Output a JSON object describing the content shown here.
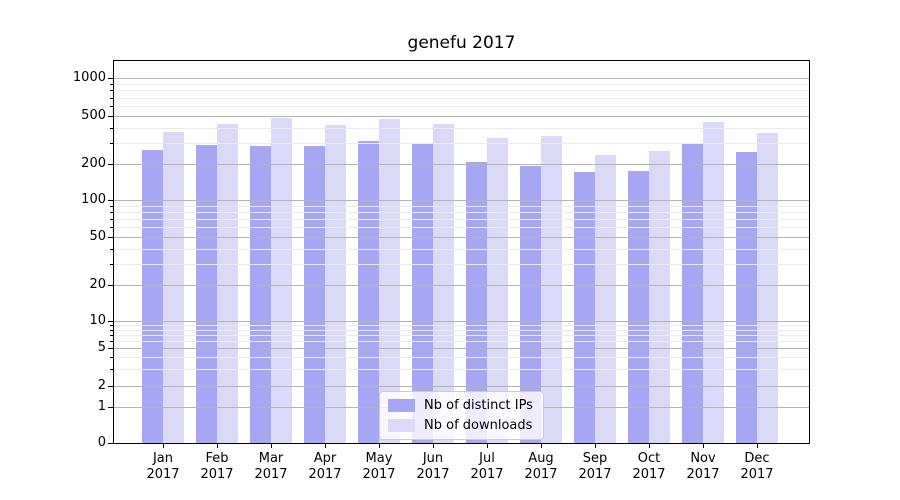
{
  "title": "genefu 2017",
  "chart_data": {
    "type": "bar",
    "title": "genefu 2017",
    "categories": [
      "Jan",
      "Feb",
      "Mar",
      "Apr",
      "May",
      "Jun",
      "Jul",
      "Aug",
      "Sep",
      "Oct",
      "Nov",
      "Dec"
    ],
    "category_year": "2017",
    "series": [
      {
        "name": "Nb of distinct IPs",
        "color": "#a6a6f4",
        "values": [
          261,
          287,
          283,
          283,
          310,
          293,
          208,
          192,
          172,
          175,
          299,
          252
        ]
      },
      {
        "name": "Nb of downloads",
        "color": "#dadaf8",
        "values": [
          368,
          429,
          481,
          421,
          472,
          428,
          329,
          341,
          237,
          256,
          446,
          362
        ]
      }
    ],
    "y_axis": {
      "scale": "log",
      "ticks": [
        0,
        1,
        2,
        5,
        10,
        20,
        50,
        100,
        200,
        500,
        1000
      ],
      "minor_ticks": [
        3,
        4,
        6,
        7,
        8,
        9,
        30,
        40,
        60,
        70,
        80,
        90,
        300,
        400,
        600,
        700,
        800,
        900
      ]
    },
    "legend": {
      "position": "lower-center"
    },
    "grid": {
      "major": true,
      "minor": true
    },
    "colors": {
      "major_grid": "#b3b3b3",
      "minor_grid": "#ebebeb",
      "axis": "#000000",
      "background": "#ffffff"
    }
  }
}
